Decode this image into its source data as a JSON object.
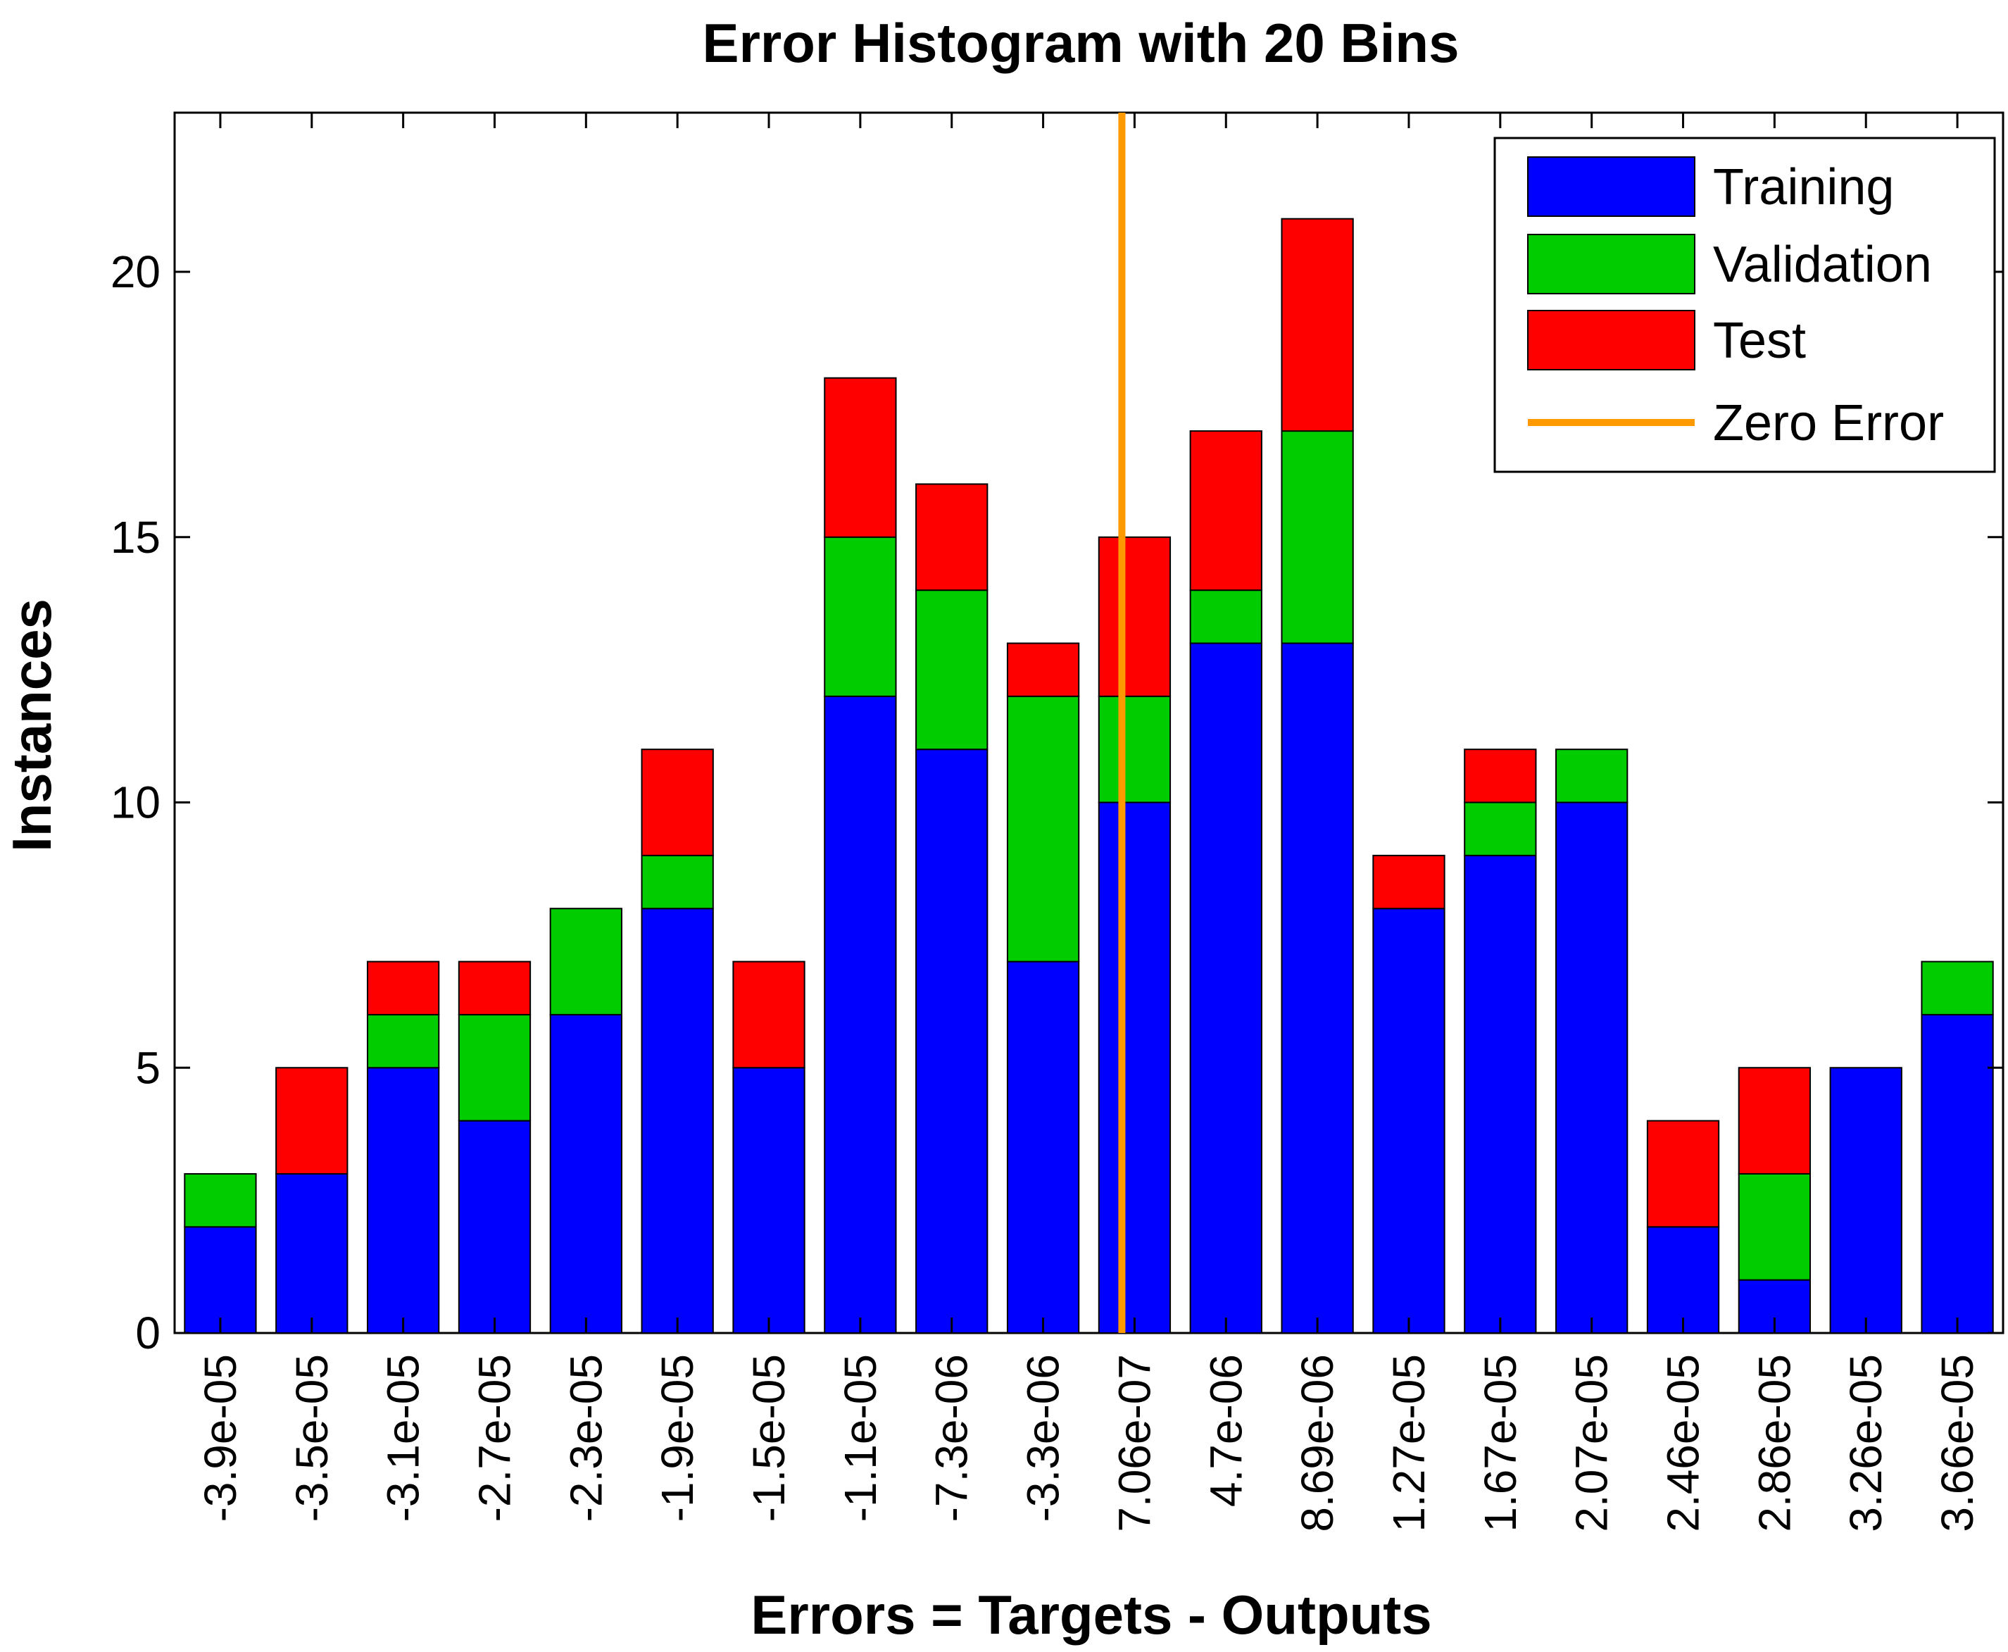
{
  "chart_data": {
    "type": "bar",
    "stacked": true,
    "title": "Error Histogram with 20 Bins",
    "xlabel": "Errors = Targets - Outputs",
    "ylabel": "Instances",
    "ylim": [
      0,
      23
    ],
    "yticks": [
      0,
      5,
      10,
      15,
      20
    ],
    "grid": false,
    "legend_position": "top-right",
    "categories": [
      "-3.9e-05",
      "-3.5e-05",
      "-3.1e-05",
      "-2.7e-05",
      "-2.3e-05",
      "-1.9e-05",
      "-1.5e-05",
      "-1.1e-05",
      "-7.3e-06",
      "-3.3e-06",
      "7.06e-07",
      "4.7e-06",
      "8.69e-06",
      "1.27e-05",
      "1.67e-05",
      "2.07e-05",
      "2.46e-05",
      "2.86e-05",
      "3.26e-05",
      "3.66e-05"
    ],
    "series": [
      {
        "name": "Training",
        "color": "#0000ff",
        "values": [
          2,
          3,
          5,
          4,
          6,
          8,
          5,
          12,
          11,
          7,
          10,
          13,
          13,
          8,
          9,
          10,
          2,
          1,
          5,
          6
        ]
      },
      {
        "name": "Validation",
        "color": "#00cc00",
        "values": [
          1,
          0,
          1,
          2,
          2,
          1,
          0,
          3,
          3,
          5,
          2,
          1,
          4,
          0,
          1,
          1,
          0,
          2,
          0,
          1
        ]
      },
      {
        "name": "Test",
        "color": "#ff0000",
        "values": [
          0,
          2,
          1,
          1,
          0,
          2,
          2,
          3,
          2,
          1,
          3,
          3,
          4,
          1,
          1,
          0,
          2,
          2,
          0,
          0
        ]
      }
    ],
    "zero_error": {
      "name": "Zero Error",
      "color": "#ff9900",
      "category": "7.06e-07"
    }
  }
}
